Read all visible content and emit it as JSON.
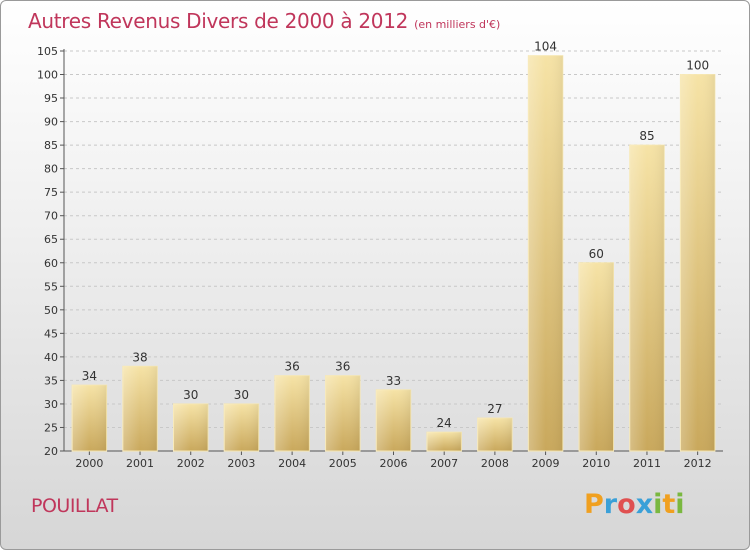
{
  "title": "Autres Revenus Divers de 2000 à 2012",
  "subtitle": "(en milliers d'€)",
  "commune": "POUILLAT",
  "logo": {
    "letters": [
      "P",
      "r",
      "o",
      "x",
      "i",
      "t",
      "i"
    ],
    "colors": [
      "#f0a020",
      "#3aa0d8",
      "#e05050",
      "#3aa0d8",
      "#7ab840",
      "#f0a020",
      "#7ab840"
    ]
  },
  "colors": {
    "title": "#c0365b",
    "bar": "#e2c06e",
    "bar_light": "#f6e3a6",
    "bar_dark": "#c9a85c"
  },
  "chart_data": {
    "type": "bar",
    "categories": [
      "2000",
      "2001",
      "2002",
      "2003",
      "2004",
      "2005",
      "2006",
      "2007",
      "2008",
      "2009",
      "2010",
      "2011",
      "2012"
    ],
    "values": [
      34,
      38,
      30,
      30,
      36,
      36,
      33,
      24,
      27,
      104,
      60,
      85,
      100
    ],
    "data_labels": [
      "34",
      "38",
      "30",
      "30",
      "36",
      "36",
      "33",
      "24",
      "27",
      "104",
      "60",
      "85",
      "100"
    ],
    "title": "Autres Revenus Divers de 2000 à 2012",
    "subtitle": "(en milliers d'€)",
    "ylim": [
      20,
      105
    ],
    "yticks": [
      20,
      25,
      30,
      35,
      40,
      45,
      50,
      55,
      60,
      65,
      70,
      75,
      80,
      85,
      90,
      95,
      100,
      105
    ],
    "grid": true,
    "legend": "none"
  }
}
